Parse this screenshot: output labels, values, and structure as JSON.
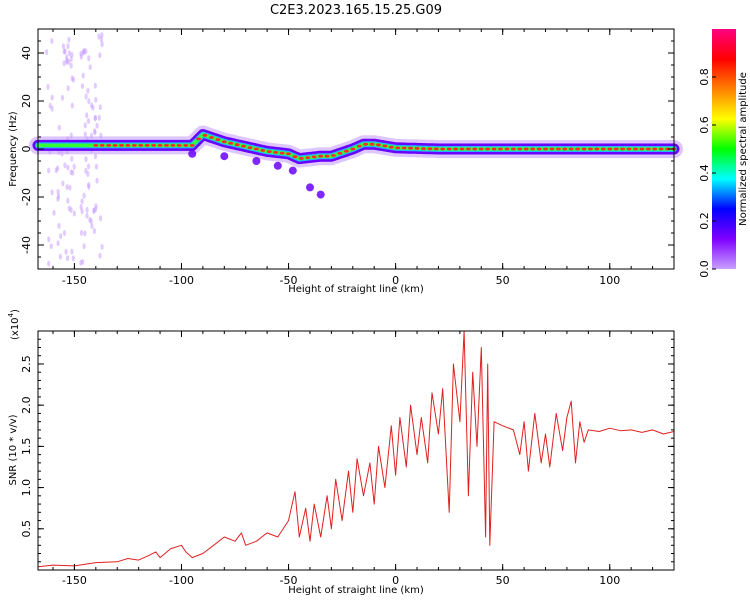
{
  "title": "C2E3.2023.165.15.25.G09",
  "colors": {
    "snr_line": "#e02020",
    "track_outer": "#6a00ff",
    "track_mid": "#22b8ff",
    "track_inner": "#33ff33",
    "track_peak": "#ff2a2a",
    "colorbar": [
      "#c8a0ff",
      "#7f00ff",
      "#0000ff",
      "#00ffff",
      "#00ff00",
      "#ffff00",
      "#ff8000",
      "#ff0000",
      "#ff0080"
    ]
  },
  "colorbar": {
    "label": "Normalized spectral amplitude",
    "ticks": [
      "0.0",
      "0.2",
      "0.4",
      "0.6",
      "0.8"
    ],
    "range": [
      0.0,
      1.0
    ]
  },
  "chart_data": [
    {
      "type": "heatmap",
      "xlabel": "Height of straight line (km)",
      "ylabel": "Frequency (Hz)",
      "xlim": [
        -167,
        130
      ],
      "ylim": [
        -50,
        50
      ],
      "xticks": [
        "-150",
        "-100",
        "-50",
        "0",
        "50",
        "100"
      ],
      "yticks": [
        "-40",
        "-20",
        "0",
        "20",
        "40"
      ],
      "dominant_track": {
        "x": [
          -165,
          -150,
          -130,
          -110,
          -95,
          -90,
          -80,
          -70,
          -60,
          -50,
          -45,
          -35,
          -30,
          -20,
          -15,
          -10,
          0,
          20,
          40,
          60,
          80,
          100,
          130
        ],
        "y": [
          1.5,
          1.5,
          1.5,
          1.5,
          1.5,
          6,
          3,
          1,
          -1,
          -2,
          -4,
          -3,
          -3,
          0,
          2,
          2,
          0.5,
          0,
          0,
          0,
          0,
          0,
          0
        ]
      },
      "secondary_track": {
        "x": [
          -95,
          -80,
          -65,
          -55,
          -48,
          -40,
          -35
        ],
        "y": [
          -2,
          -3,
          -5,
          -7,
          -9,
          -16,
          -19
        ]
      }
    },
    {
      "type": "line",
      "xlabel": "Height of straight line (km)",
      "ylabel": "SNR (10 * v/v)",
      "y_scale_label": "(x10",
      "y_scale_exp": "4",
      "xlim": [
        -167,
        130
      ],
      "ylim": [
        0,
        29000
      ],
      "xticks": [
        "-150",
        "-100",
        "-50",
        "0",
        "50",
        "100"
      ],
      "yticks": [
        "0.5",
        "1.0",
        "1.5",
        "2.0",
        "2.5"
      ],
      "series": [
        {
          "x": [
            -167,
            -160,
            -150,
            -140,
            -130,
            -125,
            -120,
            -115,
            -112,
            -110,
            -105,
            -100,
            -98,
            -95,
            -90,
            -85,
            -80,
            -75,
            -72,
            -70,
            -65,
            -60,
            -55,
            -50,
            -47,
            -45,
            -42,
            -40,
            -38,
            -35,
            -32,
            -30,
            -28,
            -25,
            -22,
            -20,
            -18,
            -15,
            -12,
            -10,
            -8,
            -5,
            -2,
            0,
            2,
            5,
            7,
            10,
            12,
            15,
            17,
            20,
            22,
            25,
            27,
            30,
            32,
            34,
            36,
            38,
            40,
            42,
            43,
            44,
            46,
            50,
            55,
            58,
            60,
            62,
            65,
            68,
            70,
            72,
            75,
            78,
            80,
            82,
            84,
            86,
            88,
            90,
            95,
            100,
            105,
            110,
            115,
            120,
            125,
            130
          ],
          "y": [
            400,
            600,
            500,
            900,
            1000,
            1400,
            1200,
            1800,
            2200,
            1500,
            2600,
            3000,
            2200,
            1500,
            2000,
            3000,
            4000,
            3500,
            4500,
            3000,
            3500,
            4500,
            4000,
            6000,
            9500,
            4000,
            7500,
            3500,
            8000,
            4000,
            9000,
            5000,
            11000,
            6000,
            12000,
            7000,
            13500,
            9000,
            13000,
            8000,
            15000,
            10000,
            17500,
            11500,
            18500,
            12500,
            20000,
            14000,
            18500,
            13000,
            21500,
            16500,
            22000,
            7000,
            25000,
            18000,
            29000,
            9000,
            24000,
            15000,
            27000,
            4000,
            25000,
            3000,
            18000,
            17500,
            17000,
            14000,
            18000,
            12000,
            19000,
            13000,
            16500,
            12500,
            19000,
            14500,
            18500,
            20500,
            13000,
            18000,
            15500,
            17000,
            16800,
            17200,
            16900,
            17000,
            16700,
            17000,
            16500,
            16800
          ]
        }
      ]
    }
  ]
}
